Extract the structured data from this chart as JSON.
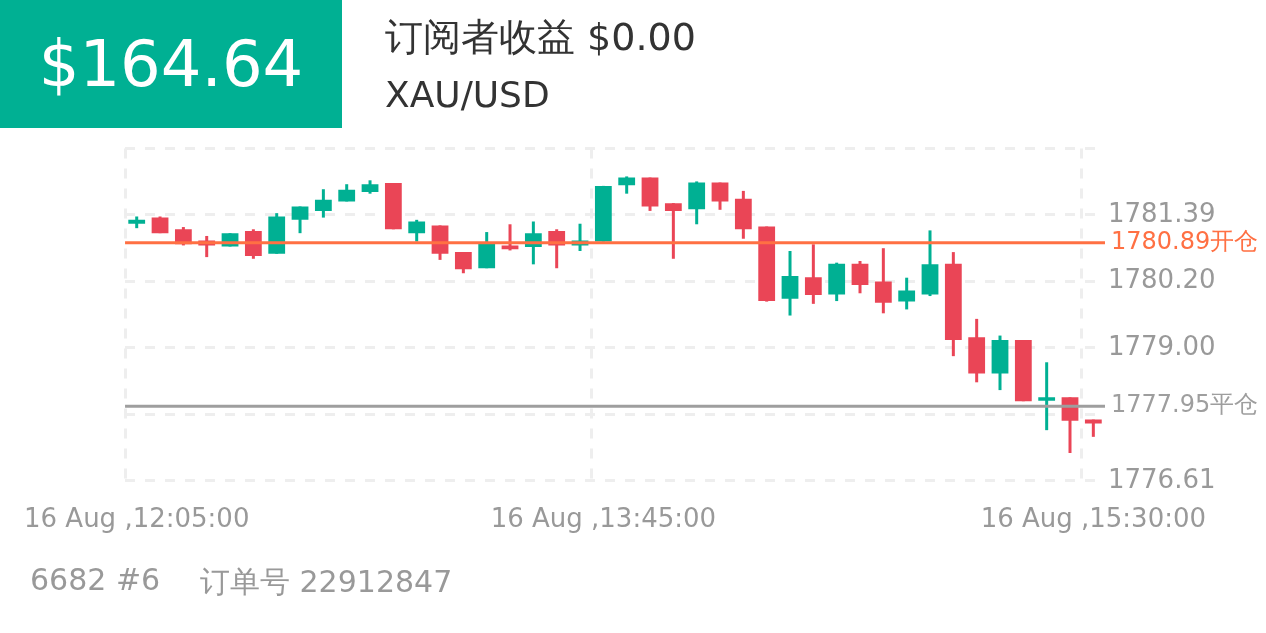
{
  "chart_data": {
    "type": "candlestick",
    "title": "订阅者收益 $0.00",
    "subtitle": "XAU/USD",
    "annotations": [
      "$164.64",
      "6682 #6",
      "订单号 22912847"
    ],
    "categories": [
      "16 Aug ,12:05:00",
      null,
      null,
      null,
      null,
      null,
      null,
      null,
      null,
      null,
      null,
      null,
      null,
      null,
      null,
      null,
      null,
      null,
      null,
      null,
      "16 Aug ,13:45:00",
      null,
      null,
      null,
      null,
      null,
      null,
      null,
      null,
      null,
      null,
      null,
      null,
      null,
      null,
      null,
      null,
      null,
      null,
      null,
      null,
      "16 Aug ,15:30:00"
    ],
    "ohlc": [
      [
        1781.23,
        1781.36,
        1781.15,
        1781.3
      ],
      [
        1781.34,
        1781.36,
        1781.06,
        1781.06
      ],
      [
        1781.13,
        1781.17,
        1780.84,
        1780.86
      ],
      [
        1780.93,
        1781.01,
        1780.63,
        1780.84
      ],
      [
        1780.82,
        1781.06,
        1780.82,
        1781.06
      ],
      [
        1781.1,
        1781.13,
        1780.6,
        1780.65
      ],
      [
        1780.69,
        1781.42,
        1780.69,
        1781.36
      ],
      [
        1781.3,
        1781.54,
        1781.06,
        1781.54
      ],
      [
        1781.46,
        1781.85,
        1781.34,
        1781.66
      ],
      [
        1781.63,
        1781.94,
        1781.63,
        1781.84
      ],
      [
        1781.8,
        1782.01,
        1781.77,
        1781.94
      ],
      [
        1781.96,
        1781.96,
        1781.13,
        1781.13
      ],
      [
        1781.06,
        1781.3,
        1780.91,
        1781.27
      ],
      [
        1781.2,
        1781.2,
        1780.58,
        1780.69
      ],
      [
        1780.72,
        1780.72,
        1780.34,
        1780.41
      ],
      [
        1780.43,
        1781.08,
        1780.43,
        1780.87
      ],
      [
        1780.84,
        1781.22,
        1780.75,
        1780.77
      ],
      [
        1780.81,
        1781.27,
        1780.5,
        1781.06
      ],
      [
        1781.1,
        1781.13,
        1780.43,
        1780.84
      ],
      [
        1780.84,
        1781.23,
        1780.74,
        1780.93
      ],
      [
        1780.91,
        1781.91,
        1780.91,
        1781.91
      ],
      [
        1781.92,
        1782.08,
        1781.77,
        1782.06
      ],
      [
        1782.06,
        1782.06,
        1781.46,
        1781.54
      ],
      [
        1781.6,
        1781.6,
        1780.6,
        1781.46
      ],
      [
        1781.49,
        1781.99,
        1781.22,
        1781.97
      ],
      [
        1781.97,
        1781.97,
        1781.48,
        1781.63
      ],
      [
        1781.68,
        1781.82,
        1780.96,
        1781.13
      ],
      [
        1781.18,
        1781.18,
        1779.83,
        1779.84
      ],
      [
        1779.88,
        1780.74,
        1779.58,
        1780.29
      ],
      [
        1780.27,
        1780.86,
        1779.79,
        1779.95
      ],
      [
        1779.96,
        1780.53,
        1779.84,
        1780.51
      ],
      [
        1780.51,
        1780.56,
        1779.98,
        1780.13
      ],
      [
        1780.19,
        1780.79,
        1779.62,
        1779.81
      ],
      [
        1779.83,
        1780.26,
        1779.69,
        1780.03
      ],
      [
        1779.96,
        1781.11,
        1779.93,
        1780.5
      ],
      [
        1780.51,
        1780.72,
        1778.85,
        1779.14
      ],
      [
        1779.19,
        1779.52,
        1778.38,
        1778.54
      ],
      [
        1778.54,
        1779.22,
        1778.24,
        1779.14
      ],
      [
        1779.14,
        1779.14,
        1778.04,
        1778.04
      ],
      [
        1778.05,
        1778.74,
        1777.52,
        1778.11
      ],
      [
        1778.11,
        1778.11,
        1777.11,
        1777.69
      ],
      [
        1777.71,
        1777.71,
        1777.4,
        1777.64
      ]
    ],
    "colors": [
      "#00b093",
      "#ea4556",
      "#ea4556",
      "#ea4556",
      "#00b093",
      "#ea4556",
      "#00b093",
      "#00b093",
      "#00b093",
      "#00b093",
      "#00b093",
      "#ea4556",
      "#00b093",
      "#ea4556",
      "#ea4556",
      "#00b093",
      "#ea4556",
      "#00b093",
      "#ea4556",
      "#00b093",
      "#00b093",
      "#00b093",
      "#ea4556",
      "#ea4556",
      "#00b093",
      "#ea4556",
      "#ea4556",
      "#ea4556",
      "#00b093",
      "#ea4556",
      "#00b093",
      "#ea4556",
      "#ea4556",
      "#00b093",
      "#00b093",
      "#ea4556",
      "#ea4556",
      "#00b093",
      "#ea4556",
      "#00b093",
      "#ea4556",
      "#ea4556"
    ],
    "ylim": [
      1776.61,
      1782.58
    ],
    "yticks": [
      1776.61,
      {
        "value": 1777.8,
        "label": null
      },
      {
        "value": 1779,
        "label": "1779.00"
      },
      {
        "value": 1780.2,
        "label": "1780.20"
      },
      1781.39,
      {
        "value": 1782.58,
        "label": null
      }
    ],
    "grid": true,
    "ref_lines": [
      {
        "axis": "y",
        "value": 1780.89,
        "label": "1780.89开仓",
        "color": "#ff7043"
      },
      {
        "axis": "y",
        "value": 1777.95,
        "label": "1777.95平仓",
        "color": "#9e9e9e"
      }
    ]
  }
}
